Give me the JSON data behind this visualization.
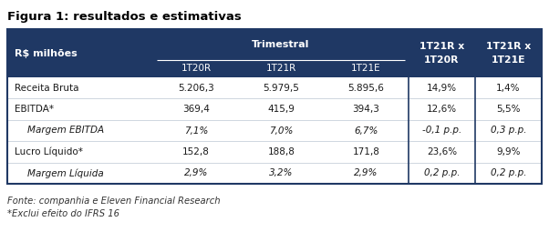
{
  "title": "Figura 1: resultados e estimativas",
  "header_bg": "#1f3864",
  "header_text_color": "#ffffff",
  "outer_bg": "#ffffff",
  "border_color": "#1f3864",
  "row_line_color": "#c8d0da",
  "rows": [
    {
      "metric": "Receita Bruta",
      "c1": "5.206,3",
      "c2": "5.979,5",
      "c3": "5.895,6",
      "c4": "14,9%",
      "c5": "1,4%",
      "italic": false
    },
    {
      "metric": "EBITDA*",
      "c1": "369,4",
      "c2": "415,9",
      "c3": "394,3",
      "c4": "12,6%",
      "c5": "5,5%",
      "italic": false
    },
    {
      "metric": "Margem EBITDA",
      "c1": "7,1%",
      "c2": "7,0%",
      "c3": "6,7%",
      "c4": "-0,1 p.p.",
      "c5": "0,3 p.p.",
      "italic": true
    },
    {
      "metric": "Lucro Líquido*",
      "c1": "152,8",
      "c2": "188,8",
      "c3": "171,8",
      "c4": "23,6%",
      "c5": "9,9%",
      "italic": false
    },
    {
      "metric": "Margem Líquida",
      "c1": "2,9%",
      "c2": "3,2%",
      "c3": "2,9%",
      "c4": "0,2 p.p.",
      "c5": "0,2 p.p.",
      "italic": true
    }
  ],
  "footer1": "Fonte: companhia e Eleven Financial Research",
  "footer2": "*Exclui efeito do IFRS 16",
  "figsize": [
    6.02,
    2.77
  ],
  "dpi": 100
}
